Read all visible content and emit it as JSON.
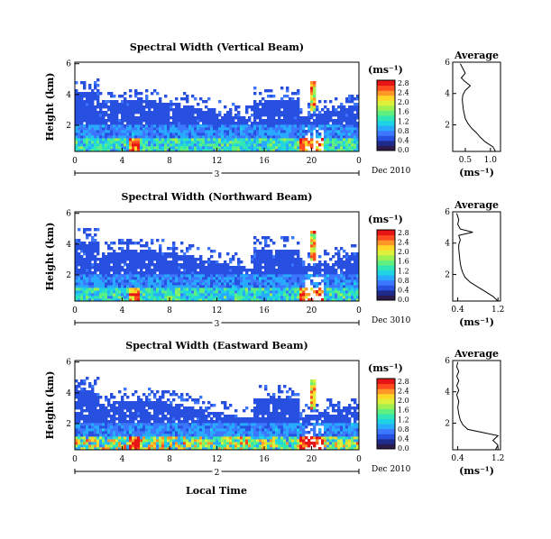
{
  "figure": {
    "footer_label": "Local Time",
    "colormap": [
      "#2b1a4a",
      "#1e2a8c",
      "#2850e0",
      "#3c78ff",
      "#28aaff",
      "#20d2e6",
      "#30e6b4",
      "#60f080",
      "#a0f050",
      "#dcf03c",
      "#ffd728",
      "#ff9628",
      "#ff4b1e",
      "#e61414"
    ]
  },
  "chart_data": [
    {
      "type": "heatmap",
      "title": "Spectral Width (Vertical Beam)",
      "ylabel": "Height (km)",
      "xlim": [
        0,
        24
      ],
      "ylim": [
        0.3,
        6.1
      ],
      "x_ticks": [
        "0",
        "4",
        "8",
        "12",
        "16",
        "20",
        "0"
      ],
      "y_ticks": [
        "2",
        "4",
        "6"
      ],
      "date_day": "3",
      "date_label": "Dec 2010",
      "colorbar": {
        "unit": "(ms⁻¹)",
        "ticks": [
          "0.0",
          "0.4",
          "0.8",
          "1.2",
          "1.6",
          "2.0",
          "2.4",
          "2.8"
        ],
        "range": [
          0,
          3.0
        ]
      },
      "average": {
        "title": "Average",
        "xlabel": "(ms⁻¹)",
        "x_ticks": [
          "0.5",
          "1.0"
        ],
        "xlim": [
          0.25,
          1.2
        ],
        "ylim": [
          0.3,
          6
        ],
        "y_ticks": [
          "2",
          "4",
          "6"
        ],
        "profile": [
          [
            1.1,
            0.3
          ],
          [
            1.05,
            0.6
          ],
          [
            0.9,
            0.9
          ],
          [
            0.8,
            1.2
          ],
          [
            0.72,
            1.5
          ],
          [
            0.62,
            1.8
          ],
          [
            0.55,
            2.1
          ],
          [
            0.5,
            2.4
          ],
          [
            0.48,
            2.7
          ],
          [
            0.46,
            3.0
          ],
          [
            0.45,
            3.3
          ],
          [
            0.44,
            3.6
          ],
          [
            0.45,
            3.9
          ],
          [
            0.5,
            4.2
          ],
          [
            0.6,
            4.5
          ],
          [
            0.48,
            4.8
          ],
          [
            0.42,
            5.0
          ],
          [
            0.5,
            5.3
          ],
          [
            0.45,
            5.6
          ],
          [
            0.4,
            5.9
          ]
        ]
      }
    },
    {
      "type": "heatmap",
      "title": "Spectral Width (Northward Beam)",
      "ylabel": "Height (km)",
      "xlim": [
        0,
        24
      ],
      "ylim": [
        0.3,
        6.1
      ],
      "x_ticks": [
        "0",
        "4",
        "8",
        "12",
        "16",
        "20",
        "0"
      ],
      "y_ticks": [
        "2",
        "4",
        "6"
      ],
      "date_day": "3",
      "date_label": "Dec 3010",
      "colorbar": {
        "unit": "(ms⁻¹)",
        "ticks": [
          "0.0",
          "0.4",
          "0.8",
          "1.2",
          "1.6",
          "2.0",
          "2.4",
          "2.8"
        ],
        "range": [
          0,
          3.0
        ]
      },
      "average": {
        "title": "Average",
        "xlabel": "(ms⁻¹)",
        "x_ticks": [
          "0.4",
          "1.2"
        ],
        "xlim": [
          0.3,
          1.25
        ],
        "ylim": [
          0.3,
          6
        ],
        "y_ticks": [
          "2",
          "4",
          "6"
        ],
        "profile": [
          [
            1.2,
            0.3
          ],
          [
            1.1,
            0.6
          ],
          [
            0.95,
            0.9
          ],
          [
            0.8,
            1.2
          ],
          [
            0.65,
            1.5
          ],
          [
            0.55,
            1.8
          ],
          [
            0.5,
            2.1
          ],
          [
            0.47,
            2.4
          ],
          [
            0.45,
            2.7
          ],
          [
            0.44,
            3.0
          ],
          [
            0.43,
            3.3
          ],
          [
            0.42,
            3.6
          ],
          [
            0.42,
            3.9
          ],
          [
            0.45,
            4.2
          ],
          [
            0.42,
            4.5
          ],
          [
            0.7,
            4.7
          ],
          [
            0.45,
            4.9
          ],
          [
            0.4,
            5.2
          ],
          [
            0.42,
            5.5
          ],
          [
            0.38,
            5.9
          ]
        ]
      }
    },
    {
      "type": "heatmap",
      "title": "Spectral Width (Eastward Beam)",
      "ylabel": "Height (km)",
      "xlim": [
        0,
        24
      ],
      "ylim": [
        0.3,
        6.1
      ],
      "x_ticks": [
        "0",
        "4",
        "8",
        "12",
        "16",
        "20",
        "0"
      ],
      "y_ticks": [
        "2",
        "4",
        "6"
      ],
      "date_day": "2",
      "date_label": "Dec 2010",
      "colorbar": {
        "unit": "(ms⁻¹)",
        "ticks": [
          "0.0",
          "0.4",
          "0.8",
          "1.2",
          "1.6",
          "2.0",
          "2.4",
          "2.8"
        ],
        "range": [
          0,
          3.0
        ]
      },
      "average": {
        "title": "Average",
        "xlabel": "(ms⁻¹)",
        "x_ticks": [
          "0.4",
          "1.2"
        ],
        "xlim": [
          0.3,
          1.25
        ],
        "ylim": [
          0.3,
          6
        ],
        "y_ticks": [
          "2",
          "4",
          "6"
        ],
        "profile": [
          [
            1.15,
            0.3
          ],
          [
            1.2,
            0.6
          ],
          [
            1.1,
            0.9
          ],
          [
            1.2,
            1.2
          ],
          [
            0.9,
            1.4
          ],
          [
            0.6,
            1.6
          ],
          [
            0.5,
            1.9
          ],
          [
            0.45,
            2.2
          ],
          [
            0.42,
            2.6
          ],
          [
            0.4,
            3.0
          ],
          [
            0.42,
            3.4
          ],
          [
            0.38,
            3.8
          ],
          [
            0.42,
            4.1
          ],
          [
            0.38,
            4.4
          ],
          [
            0.42,
            4.7
          ],
          [
            0.38,
            5.0
          ],
          [
            0.42,
            5.3
          ],
          [
            0.38,
            5.6
          ],
          [
            0.4,
            5.9
          ]
        ]
      }
    }
  ]
}
